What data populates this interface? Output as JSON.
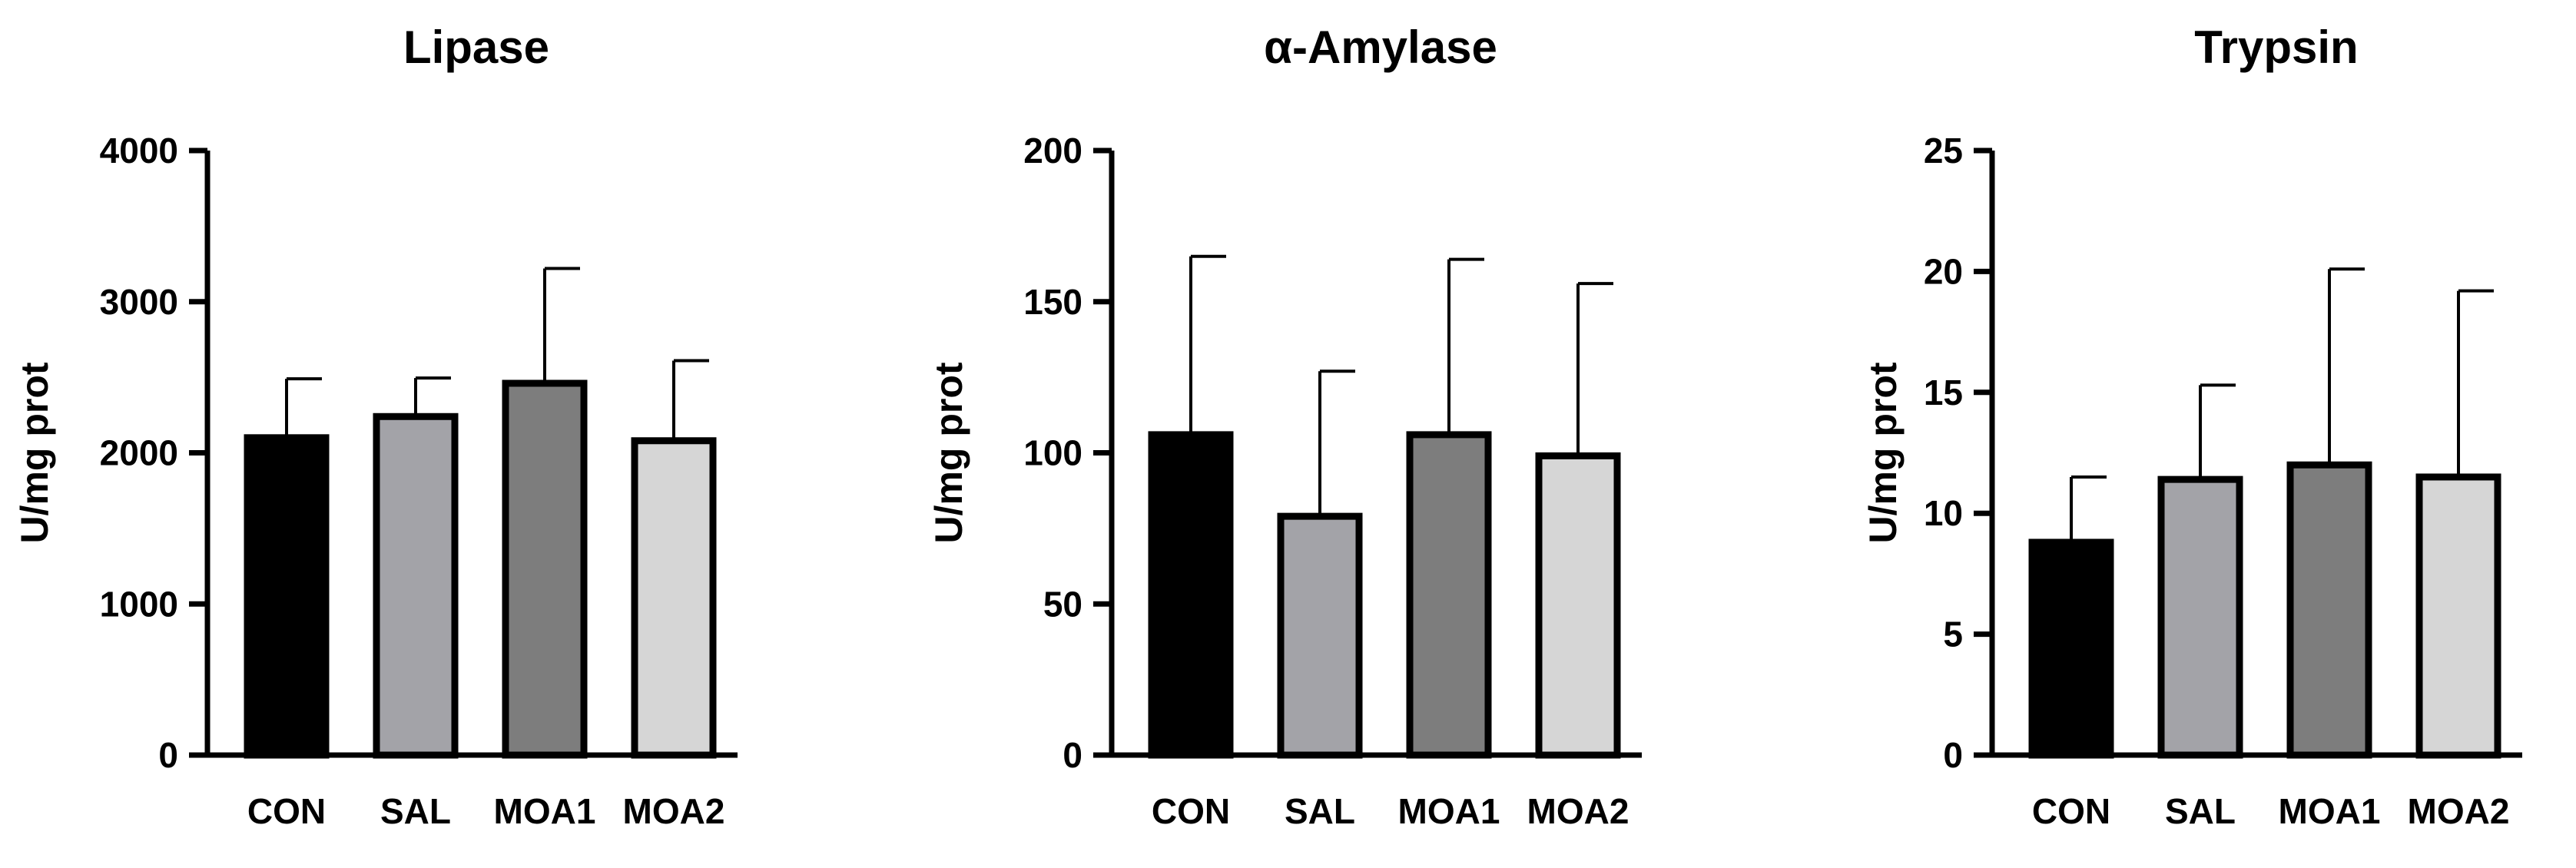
{
  "chart_data": [
    {
      "type": "bar",
      "title": "Lipase",
      "ylabel": "U/mg prot",
      "xlabel": "",
      "categories": [
        "CON",
        "SAL",
        "MOA1",
        "MOA2"
      ],
      "values": [
        2100,
        2240,
        2460,
        2080
      ],
      "errors": [
        390,
        255,
        760,
        530
      ],
      "ylim": [
        0,
        4000
      ],
      "yticks": [
        0,
        1000,
        2000,
        3000,
        4000
      ],
      "bar_colors": [
        "#000000",
        "#a3a3a8",
        "#7d7d7d",
        "#d6d6d6"
      ],
      "grid": false
    },
    {
      "type": "bar",
      "title": "α-Amylase",
      "ylabel": "U/mg prot",
      "xlabel": "",
      "categories": [
        "CON",
        "SAL",
        "MOA1",
        "MOA2"
      ],
      "values": [
        106,
        79,
        106,
        99
      ],
      "errors": [
        59,
        48,
        58,
        57
      ],
      "ylim": [
        0,
        200
      ],
      "yticks": [
        0,
        50,
        100,
        150,
        200
      ],
      "bar_colors": [
        "#000000",
        "#a3a3a8",
        "#7d7d7d",
        "#d6d6d6"
      ],
      "grid": false
    },
    {
      "type": "bar",
      "title": "Trypsin",
      "ylabel": "U/mg prot",
      "xlabel": "",
      "categories": [
        "CON",
        "SAL",
        "MOA1",
        "MOA2"
      ],
      "values": [
        8.8,
        11.4,
        12.0,
        11.5
      ],
      "errors": [
        2.7,
        3.9,
        8.1,
        7.7
      ],
      "ylim": [
        0,
        25
      ],
      "yticks": [
        0,
        5,
        10,
        15,
        20,
        25
      ],
      "bar_colors": [
        "#000000",
        "#a3a3a8",
        "#7d7d7d",
        "#d6d6d6"
      ],
      "grid": false
    }
  ]
}
